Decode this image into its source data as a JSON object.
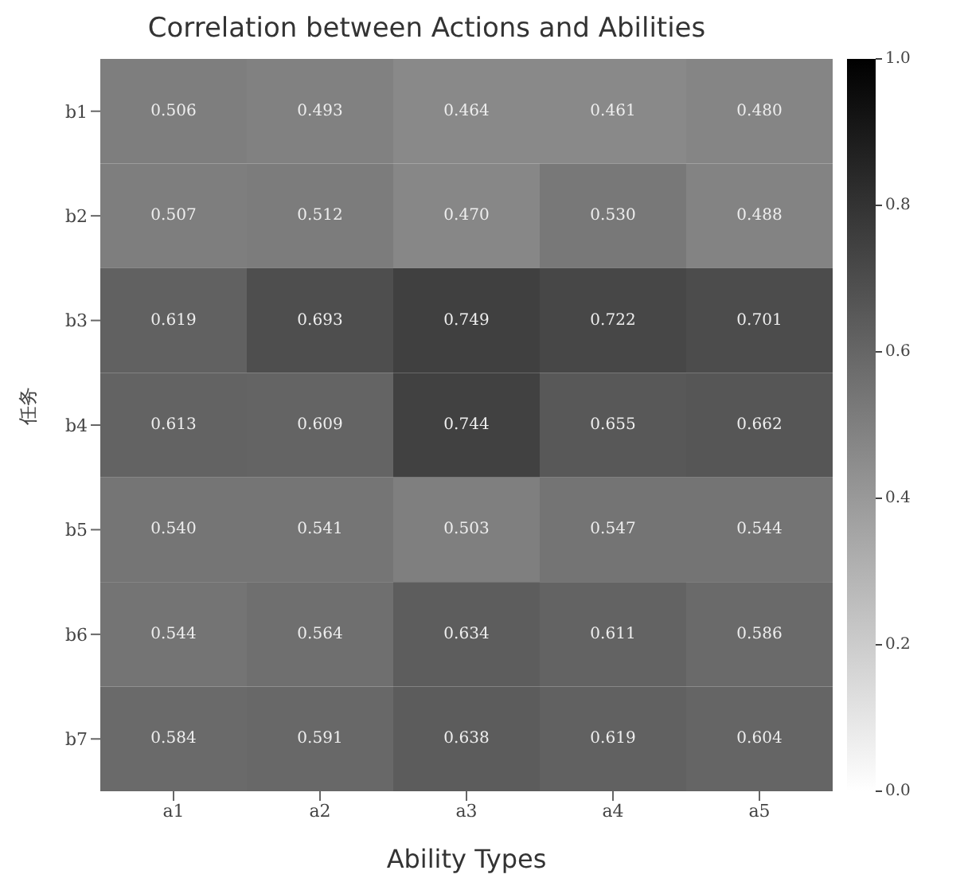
{
  "chart_data": {
    "type": "heatmap",
    "title": "Correlation between Actions and Abilities",
    "xlabel": "Ability Types",
    "ylabel": "任务",
    "categories": [
      "a1",
      "a2",
      "a3",
      "a4",
      "a5"
    ],
    "y_categories": [
      "b1",
      "b2",
      "b3",
      "b4",
      "b5",
      "b6",
      "b7"
    ],
    "cells": [
      [
        0.506,
        0.493,
        0.464,
        0.461,
        0.48
      ],
      [
        0.507,
        0.512,
        0.47,
        0.53,
        0.488
      ],
      [
        0.619,
        0.693,
        0.749,
        0.722,
        0.701
      ],
      [
        0.613,
        0.609,
        0.744,
        0.655,
        0.662
      ],
      [
        0.54,
        0.541,
        0.503,
        0.547,
        0.544
      ],
      [
        0.544,
        0.564,
        0.634,
        0.611,
        0.586
      ],
      [
        0.584,
        0.591,
        0.638,
        0.619,
        0.604
      ]
    ],
    "data_labels": true,
    "cell_labels": [
      [
        "0.506",
        "0.493",
        "0.464",
        "0.461",
        "0.480"
      ],
      [
        "0.507",
        "0.512",
        "0.470",
        "0.530",
        "0.488"
      ],
      [
        "0.619",
        "0.693",
        "0.749",
        "0.722",
        "0.701"
      ],
      [
        "0.613",
        "0.609",
        "0.744",
        "0.655",
        "0.662"
      ],
      [
        "0.540",
        "0.541",
        "0.503",
        "0.547",
        "0.544"
      ],
      [
        "0.544",
        "0.564",
        "0.634",
        "0.611",
        "0.586"
      ],
      [
        "0.584",
        "0.591",
        "0.638",
        "0.619",
        "0.604"
      ]
    ],
    "clim": [
      0,
      1
    ],
    "cticks": [
      {
        "value": 0,
        "label": "0.0"
      },
      {
        "value": 0.2,
        "label": "0.2"
      },
      {
        "value": 0.4,
        "label": "0.4"
      },
      {
        "value": 0.6,
        "label": "0.6"
      },
      {
        "value": 0.8,
        "label": "0.8"
      },
      {
        "value": 1,
        "label": "1.0"
      }
    ]
  }
}
